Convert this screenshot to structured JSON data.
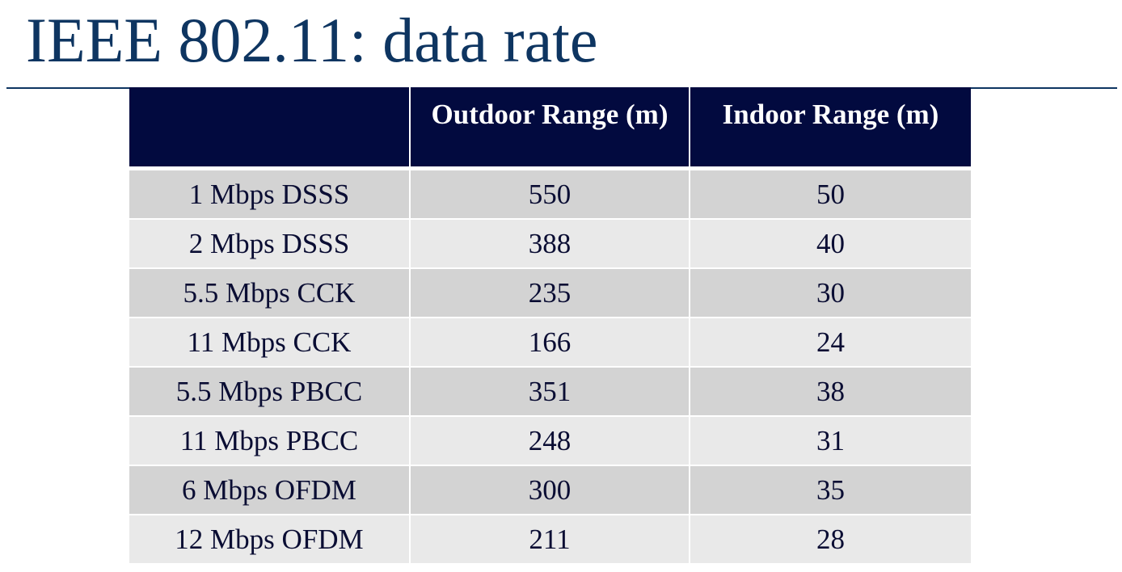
{
  "slide": {
    "title": "IEEE 802.11: data rate"
  },
  "table": {
    "headers": [
      "",
      "Outdoor Range (m)",
      "Indoor Range (m)"
    ],
    "rows": [
      [
        "1 Mbps DSSS",
        "550",
        "50"
      ],
      [
        "2 Mbps DSSS",
        "388",
        "40"
      ],
      [
        "5.5 Mbps CCK",
        "235",
        "30"
      ],
      [
        "11 Mbps CCK",
        "166",
        "24"
      ],
      [
        "5.5 Mbps PBCC",
        "351",
        "38"
      ],
      [
        "11 Mbps PBCC",
        "248",
        "31"
      ],
      [
        "6 Mbps OFDM",
        "300",
        "35"
      ],
      [
        "12 Mbps OFDM",
        "211",
        "28"
      ]
    ]
  },
  "colors": {
    "title": "#0e3561",
    "header_background": "#020a3f",
    "header_text": "#ffffff",
    "row_dark": "#d3d3d3",
    "row_light": "#e9e9e9"
  }
}
